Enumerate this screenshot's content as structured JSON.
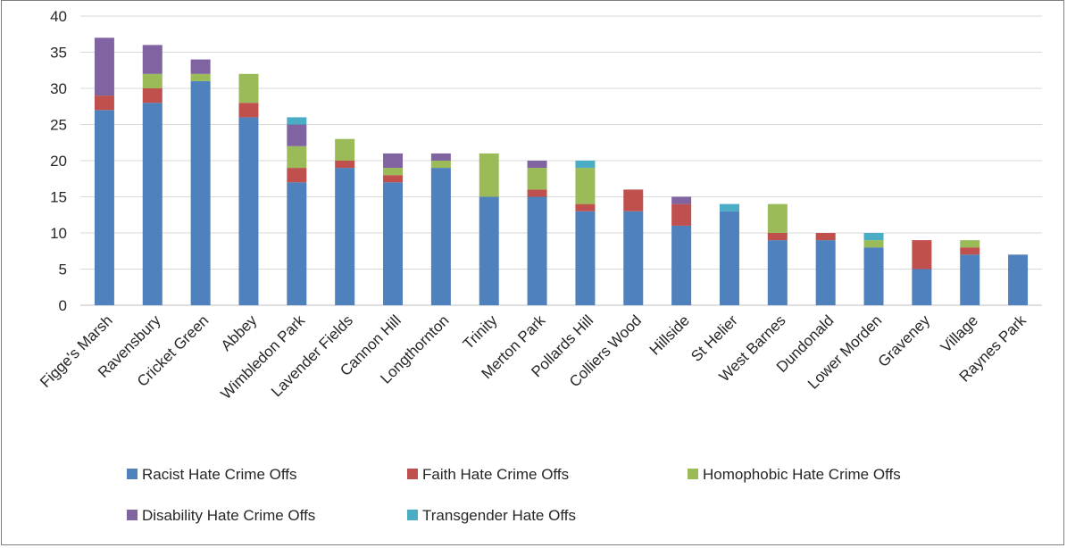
{
  "chart_data": {
    "type": "bar",
    "stacked": true,
    "ylim": [
      0,
      40
    ],
    "yticks": [
      0,
      5,
      10,
      15,
      20,
      25,
      30,
      35,
      40
    ],
    "grid": true,
    "legend_position": "bottom",
    "categories": [
      "Figge's Marsh",
      "Ravensbury",
      "Cricket Green",
      "Abbey",
      "Wimbledon Park",
      "Lavender Fields",
      "Cannon Hill",
      "Longthornton",
      "Trinity",
      "Merton Park",
      "Pollards Hill",
      "Colliers Wood",
      "Hillside",
      "St Helier",
      "West Barnes",
      "Dundonald",
      "Lower Morden",
      "Graveney",
      "Village",
      "Raynes Park"
    ],
    "series": [
      {
        "name": "Racist Hate Crime Offs",
        "color": "#4f81bd",
        "values": [
          27,
          28,
          31,
          26,
          17,
          19,
          17,
          19,
          15,
          15,
          13,
          13,
          11,
          13,
          9,
          9,
          8,
          5,
          7,
          7
        ]
      },
      {
        "name": "Faith Hate Crime Offs",
        "color": "#c0504d",
        "values": [
          2,
          2,
          0,
          2,
          2,
          1,
          1,
          0,
          0,
          1,
          1,
          3,
          3,
          0,
          1,
          1,
          0,
          4,
          1,
          0
        ]
      },
      {
        "name": "Homophobic Hate Crime Offs",
        "color": "#9bbb59",
        "values": [
          0,
          2,
          1,
          4,
          3,
          3,
          1,
          1,
          6,
          3,
          5,
          0,
          0,
          0,
          4,
          0,
          1,
          0,
          1,
          0
        ]
      },
      {
        "name": "Disability Hate Crime Offs",
        "color": "#8064a2",
        "values": [
          8,
          4,
          2,
          0,
          3,
          0,
          2,
          1,
          0,
          1,
          0,
          0,
          1,
          0,
          0,
          0,
          0,
          0,
          0,
          0
        ]
      },
      {
        "name": "Transgender Hate Offs",
        "color": "#4bacc6",
        "values": [
          0,
          0,
          0,
          0,
          1,
          0,
          0,
          0,
          0,
          0,
          1,
          0,
          0,
          1,
          0,
          0,
          1,
          0,
          0,
          0
        ]
      }
    ]
  }
}
